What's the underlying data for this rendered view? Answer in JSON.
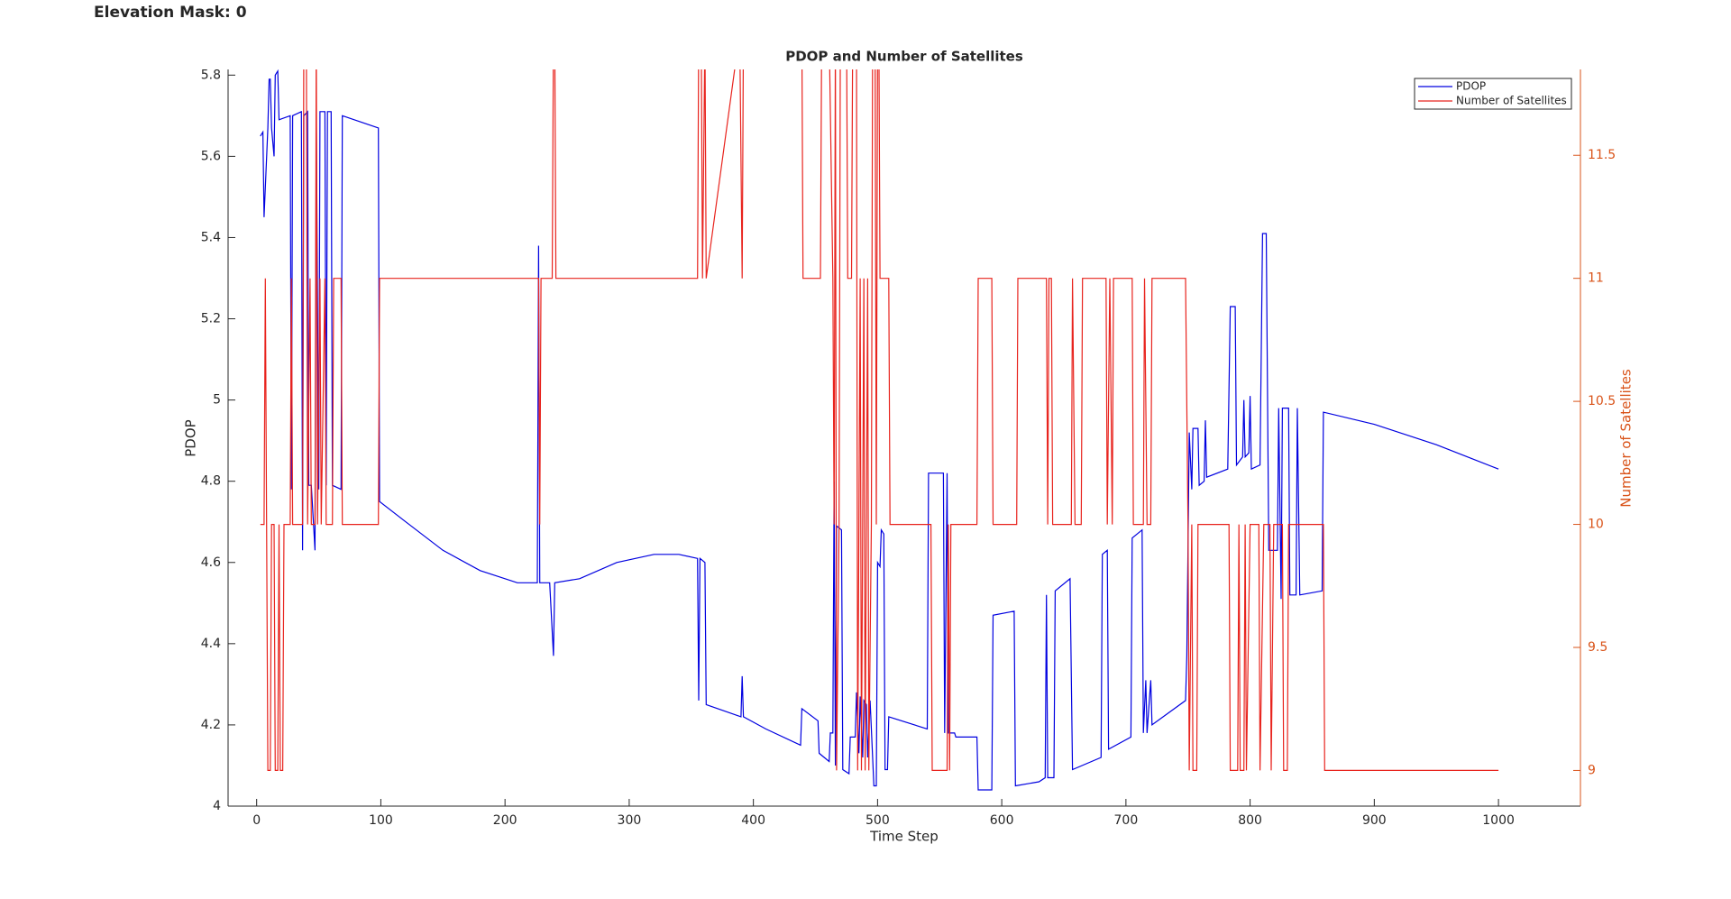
{
  "header": {
    "title": "Elevation Mask: 0"
  },
  "chart_data": {
    "type": "line",
    "title": "PDOP and Number of Satellites",
    "xlabel": "Time Step",
    "ylabel": "PDOP",
    "y2label": "Number of Satellites",
    "xlim": [
      -23,
      1066
    ],
    "xticks": [
      0,
      100,
      200,
      300,
      400,
      500,
      600,
      700,
      800,
      900,
      1000
    ],
    "ylim": [
      4,
      5.814
    ],
    "yticks": [
      4,
      4.2,
      4.4,
      4.6,
      4.8,
      5,
      5.2,
      5.4,
      5.6,
      5.8
    ],
    "y2lim": [
      8.855,
      11.849
    ],
    "y2ticks": [
      9,
      9.5,
      10,
      10.5,
      11,
      11.5
    ],
    "y2color": "#d95319",
    "legend": "upper right",
    "grid": false,
    "series": [
      {
        "name": "PDOP",
        "color": "#0000e0",
        "x": [
          3,
          5,
          6,
          9,
          10,
          11,
          12,
          14,
          15,
          17,
          18,
          27,
          28,
          29,
          36,
          37,
          38,
          41,
          42,
          44,
          47,
          48,
          50,
          51,
          55,
          56,
          57,
          60,
          61,
          68,
          69,
          98,
          99,
          120,
          150,
          180,
          210,
          226,
          227,
          228,
          236,
          239,
          240,
          260,
          290,
          320,
          340,
          355,
          356,
          357,
          361,
          362,
          390,
          391,
          392,
          410,
          438,
          439,
          452,
          453,
          461,
          462,
          464,
          465,
          466,
          467,
          471,
          472,
          477,
          478,
          482,
          483,
          485,
          486,
          488,
          489,
          491,
          492,
          494,
          497,
          499,
          500,
          502,
          503,
          505,
          506,
          508,
          509,
          540,
          541,
          553,
          554,
          556,
          557,
          562,
          563,
          580,
          581,
          592,
          593,
          610,
          611,
          630,
          635,
          636,
          637,
          642,
          643,
          655,
          657,
          680,
          681,
          685,
          686,
          704,
          705,
          713,
          714,
          716,
          717,
          720,
          721,
          748,
          749,
          751,
          753,
          754,
          758,
          759,
          763,
          764,
          765,
          782,
          784,
          788,
          789,
          794,
          795,
          796,
          799,
          800,
          801,
          808,
          810,
          813,
          815,
          822,
          823,
          825,
          826,
          831,
          832,
          837,
          838,
          840,
          858,
          859,
          900,
          950,
          1000
        ],
        "values": [
          5.65,
          5.66,
          5.45,
          5.67,
          5.79,
          5.79,
          5.67,
          5.6,
          5.8,
          5.81,
          5.69,
          5.7,
          4.78,
          5.7,
          5.71,
          4.63,
          5.7,
          5.71,
          4.79,
          4.79,
          4.63,
          5.71,
          4.78,
          5.71,
          5.71,
          4.79,
          5.71,
          5.71,
          4.79,
          4.78,
          5.7,
          5.67,
          4.75,
          4.7,
          4.63,
          4.58,
          4.55,
          4.55,
          5.38,
          4.55,
          4.55,
          4.37,
          4.55,
          4.56,
          4.6,
          4.62,
          4.62,
          4.61,
          4.26,
          4.61,
          4.6,
          4.25,
          4.22,
          4.32,
          4.22,
          4.19,
          4.15,
          4.24,
          4.21,
          4.13,
          4.11,
          4.18,
          4.18,
          4.8,
          4.1,
          4.69,
          4.68,
          4.09,
          4.08,
          4.17,
          4.17,
          4.28,
          4.13,
          4.27,
          4.12,
          4.26,
          4.25,
          4.12,
          4.26,
          4.05,
          4.05,
          4.6,
          4.59,
          4.68,
          4.67,
          4.09,
          4.09,
          4.22,
          4.19,
          4.82,
          4.82,
          4.18,
          4.82,
          4.18,
          4.18,
          4.17,
          4.17,
          4.04,
          4.04,
          4.47,
          4.48,
          4.05,
          4.06,
          4.07,
          4.52,
          4.07,
          4.07,
          4.53,
          4.56,
          4.09,
          4.12,
          4.62,
          4.63,
          4.14,
          4.17,
          4.66,
          4.68,
          4.18,
          4.31,
          4.18,
          4.31,
          4.2,
          4.26,
          4.37,
          4.92,
          4.78,
          4.93,
          4.93,
          4.79,
          4.8,
          4.95,
          4.81,
          4.83,
          5.23,
          5.23,
          4.84,
          4.86,
          5.0,
          4.86,
          4.87,
          5.01,
          4.83,
          4.84,
          5.41,
          5.41,
          4.63,
          4.63,
          4.98,
          4.51,
          4.98,
          4.98,
          4.52,
          4.52,
          4.98,
          4.52,
          4.53,
          4.97,
          4.94,
          4.89,
          4.83
        ]
      },
      {
        "name": "Number of Satellites",
        "color": "#e8231d",
        "axis": "y2",
        "x": [
          3,
          6,
          7,
          8,
          9,
          11,
          12,
          14,
          15,
          17,
          18,
          19,
          21,
          22,
          27,
          28,
          29,
          37,
          38,
          40,
          41,
          43,
          44,
          47,
          48,
          49,
          51,
          52,
          55,
          56,
          61,
          62,
          68,
          69,
          98,
          99,
          227,
          228,
          229,
          238,
          239,
          240,
          241,
          355,
          356,
          358,
          359,
          361,
          362,
          389,
          391,
          392,
          439,
          440,
          454,
          455,
          461,
          464,
          465,
          466,
          467,
          469,
          470,
          475,
          476,
          479,
          480,
          483,
          484,
          486,
          487,
          489,
          490,
          492,
          493,
          495,
          496,
          498,
          499,
          500,
          501,
          502,
          509,
          510,
          543,
          544,
          556,
          557,
          558,
          559,
          580,
          581,
          592,
          593,
          612,
          613,
          636,
          637,
          638,
          640,
          641,
          656,
          657,
          659,
          664,
          665,
          684,
          685,
          687,
          689,
          690,
          705,
          706,
          714,
          715,
          717,
          720,
          721,
          748,
          750,
          751,
          753,
          754,
          757,
          758,
          783,
          784,
          790,
          791,
          792,
          795,
          796,
          797,
          800,
          807,
          808,
          811,
          816,
          817,
          819,
          826,
          827,
          830,
          831,
          859,
          860,
          1000
        ],
        "values": [
          10,
          10,
          11,
          10,
          9,
          9,
          10,
          10,
          9,
          9,
          10,
          9,
          9,
          10,
          10,
          11,
          10,
          10,
          12,
          12,
          10,
          11,
          10,
          10,
          12,
          10,
          11,
          10,
          11,
          10,
          10,
          11,
          11,
          10,
          10,
          11,
          11,
          10,
          11,
          11,
          12,
          12,
          11,
          11,
          12,
          12,
          11,
          12,
          11,
          12,
          11,
          12,
          12,
          11,
          11,
          12,
          12,
          11,
          10,
          12,
          9,
          10,
          12,
          12,
          11,
          11,
          12,
          12,
          9,
          11,
          9,
          11,
          9,
          11,
          9,
          10,
          12,
          12,
          10,
          12,
          12,
          11,
          11,
          10,
          10,
          9,
          9,
          10,
          9,
          10,
          10,
          11,
          11,
          10,
          10,
          11,
          11,
          10,
          11,
          11,
          10,
          10,
          11,
          10,
          10,
          11,
          11,
          10,
          11,
          10,
          11,
          11,
          10,
          10,
          11,
          10,
          10,
          11,
          11,
          10,
          9,
          10,
          9,
          9,
          10,
          10,
          9,
          9,
          10,
          9,
          9,
          10,
          9,
          10,
          10,
          9,
          10,
          10,
          9,
          10,
          10,
          9,
          9,
          10,
          10,
          9,
          9
        ]
      }
    ]
  }
}
